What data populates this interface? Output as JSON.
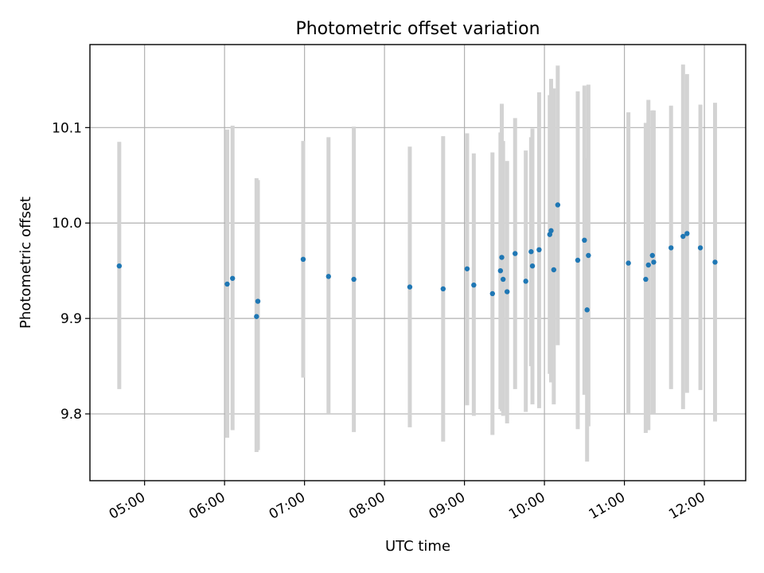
{
  "chart_data": {
    "type": "scatter",
    "title": "Photometric offset variation",
    "xlabel": "UTC time",
    "ylabel": "Photometric offset",
    "x_ticks": [
      "05:00",
      "06:00",
      "07:00",
      "08:00",
      "09:00",
      "10:00",
      "11:00",
      "12:00"
    ],
    "y_ticks": [
      "9.8",
      "9.9",
      "10.0",
      "10.1"
    ],
    "xlim": [
      "04:19",
      "12:31"
    ],
    "ylim": [
      9.73,
      10.187
    ],
    "grid": true,
    "colors": {
      "point": "#1f77b4",
      "errorbar": "#d3d3d3"
    },
    "points": [
      {
        "t": "04:41",
        "y": 9.955,
        "lo": 9.826,
        "hi": 10.085
      },
      {
        "t": "06:02",
        "y": 9.936,
        "lo": 9.775,
        "hi": 10.098
      },
      {
        "t": "06:06",
        "y": 9.942,
        "lo": 9.783,
        "hi": 10.102
      },
      {
        "t": "06:24",
        "y": 9.902,
        "lo": 9.76,
        "hi": 10.047
      },
      {
        "t": "06:25",
        "y": 9.918,
        "lo": 9.762,
        "hi": 10.045
      },
      {
        "t": "06:59",
        "y": 9.962,
        "lo": 9.838,
        "hi": 10.086
      },
      {
        "t": "07:18",
        "y": 9.944,
        "lo": 9.8,
        "hi": 10.09
      },
      {
        "t": "07:37",
        "y": 9.941,
        "lo": 9.781,
        "hi": 10.101
      },
      {
        "t": "08:19",
        "y": 9.933,
        "lo": 9.786,
        "hi": 10.08
      },
      {
        "t": "08:44",
        "y": 9.931,
        "lo": 9.771,
        "hi": 10.091
      },
      {
        "t": "09:02",
        "y": 9.952,
        "lo": 9.809,
        "hi": 10.094
      },
      {
        "t": "09:07",
        "y": 9.935,
        "lo": 9.798,
        "hi": 10.073
      },
      {
        "t": "09:21",
        "y": 9.926,
        "lo": 9.778,
        "hi": 10.074
      },
      {
        "t": "09:27",
        "y": 9.95,
        "lo": 9.805,
        "hi": 10.095
      },
      {
        "t": "09:28",
        "y": 9.964,
        "lo": 9.803,
        "hi": 10.125
      },
      {
        "t": "09:29",
        "y": 9.941,
        "lo": 9.798,
        "hi": 10.086
      },
      {
        "t": "09:32",
        "y": 9.928,
        "lo": 9.79,
        "hi": 10.065
      },
      {
        "t": "09:38",
        "y": 9.968,
        "lo": 9.826,
        "hi": 10.11
      },
      {
        "t": "09:46",
        "y": 9.939,
        "lo": 9.802,
        "hi": 10.076
      },
      {
        "t": "09:50",
        "y": 9.97,
        "lo": 9.85,
        "hi": 10.09
      },
      {
        "t": "09:51",
        "y": 9.955,
        "lo": 9.81,
        "hi": 10.099
      },
      {
        "t": "09:56",
        "y": 9.972,
        "lo": 9.806,
        "hi": 10.137
      },
      {
        "t": "10:04",
        "y": 9.988,
        "lo": 9.842,
        "hi": 10.134
      },
      {
        "t": "10:05",
        "y": 9.992,
        "lo": 9.833,
        "hi": 10.151
      },
      {
        "t": "10:07",
        "y": 9.951,
        "lo": 9.81,
        "hi": 10.141
      },
      {
        "t": "10:10",
        "y": 10.019,
        "lo": 9.872,
        "hi": 10.165
      },
      {
        "t": "10:25",
        "y": 9.961,
        "lo": 9.784,
        "hi": 10.138
      },
      {
        "t": "10:30",
        "y": 9.982,
        "lo": 9.82,
        "hi": 10.144
      },
      {
        "t": "10:32",
        "y": 9.909,
        "lo": 9.75,
        "hi": 10.068
      },
      {
        "t": "10:33",
        "y": 9.966,
        "lo": 9.787,
        "hi": 10.145
      },
      {
        "t": "11:03",
        "y": 9.958,
        "lo": 9.8,
        "hi": 10.116
      },
      {
        "t": "11:16",
        "y": 9.941,
        "lo": 9.78,
        "hi": 10.105
      },
      {
        "t": "11:18",
        "y": 9.956,
        "lo": 9.783,
        "hi": 10.129
      },
      {
        "t": "11:21",
        "y": 9.966,
        "lo": 9.8,
        "hi": 10.118
      },
      {
        "t": "11:22",
        "y": 9.959,
        "lo": 9.8,
        "hi": 10.118
      },
      {
        "t": "11:35",
        "y": 9.974,
        "lo": 9.826,
        "hi": 10.123
      },
      {
        "t": "11:44",
        "y": 9.986,
        "lo": 9.805,
        "hi": 10.166
      },
      {
        "t": "11:47",
        "y": 9.989,
        "lo": 9.822,
        "hi": 10.156
      },
      {
        "t": "11:57",
        "y": 9.974,
        "lo": 9.825,
        "hi": 10.124
      },
      {
        "t": "12:08",
        "y": 9.959,
        "lo": 9.792,
        "hi": 10.126
      }
    ]
  }
}
